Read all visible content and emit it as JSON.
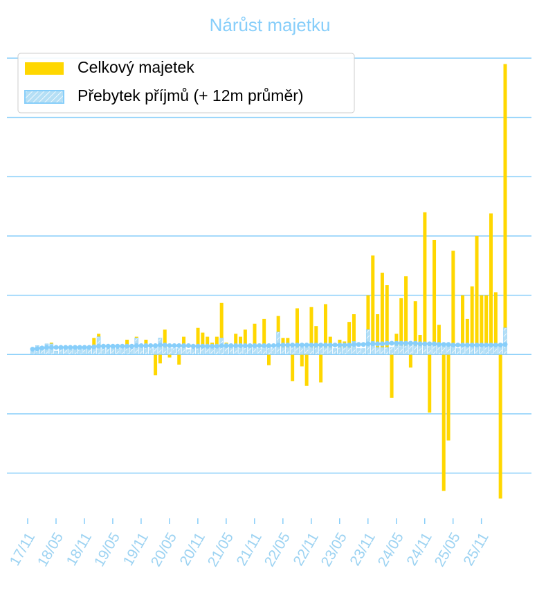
{
  "chart_data": {
    "type": "bar",
    "title": "Nárůst majetku",
    "categories": [
      "17/11",
      null,
      null,
      null,
      null,
      null,
      "18/05",
      null,
      null,
      null,
      null,
      null,
      "18/11",
      null,
      null,
      null,
      null,
      null,
      "19/05",
      null,
      null,
      null,
      null,
      null,
      "19/11",
      null,
      null,
      null,
      null,
      null,
      "20/05",
      null,
      null,
      null,
      null,
      null,
      "20/11",
      null,
      null,
      null,
      null,
      null,
      "21/05",
      null,
      null,
      null,
      null,
      null,
      "21/11",
      null,
      null,
      null,
      null,
      null,
      "22/05",
      null,
      null,
      null,
      null,
      null,
      "22/11",
      null,
      null,
      null,
      null,
      null,
      "23/05",
      null,
      null,
      null,
      null,
      null,
      "23/11",
      null,
      null,
      null,
      null,
      null,
      "24/05",
      null,
      null,
      null,
      null,
      null,
      "24/11",
      null,
      null,
      null,
      null,
      null,
      "25/05",
      null,
      null,
      null,
      null,
      null,
      "25/11",
      null,
      null,
      null,
      null
    ],
    "series": [
      {
        "name": "Celkový majetek",
        "color": "#ffd700",
        "values": [
          0.08,
          0.15,
          0.12,
          0.18,
          0.2,
          0.06,
          0.1,
          0.1,
          0.12,
          0.12,
          0.1,
          0.12,
          0.1,
          0.28,
          0.35,
          0.1,
          0.1,
          0.12,
          0.1,
          0.12,
          0.25,
          0.1,
          0.3,
          0.12,
          0.25,
          0.1,
          -0.35,
          -0.15,
          0.42,
          -0.05,
          0.1,
          -0.17,
          0.3,
          0.08,
          0.1,
          0.45,
          0.37,
          0.3,
          0.2,
          0.3,
          0.87,
          0.2,
          0.15,
          0.35,
          0.3,
          0.42,
          0.12,
          0.52,
          0.1,
          0.6,
          -0.18,
          0.1,
          0.65,
          0.28,
          0.28,
          -0.45,
          0.78,
          -0.2,
          -0.53,
          0.8,
          0.48,
          -0.47,
          0.85,
          0.3,
          0.1,
          0.25,
          0.22,
          0.55,
          0.68,
          0.1,
          0.1,
          1.0,
          1.67,
          0.68,
          1.38,
          1.17,
          -0.73,
          0.35,
          0.95,
          1.32,
          -0.22,
          0.9,
          0.33,
          2.4,
          -0.98,
          1.93,
          0.5,
          -2.3,
          -1.45,
          1.75,
          0.1,
          1.0,
          0.6,
          1.15,
          2.0,
          1.0,
          1.0,
          2.38,
          1.05,
          -2.43,
          4.9
        ]
      },
      {
        "name": "Přebytek příjmů (+ 12m průměr)",
        "color": "#87cefa",
        "values": [
          0.08,
          0.15,
          0.12,
          0.18,
          0.18,
          0.06,
          0.1,
          0.1,
          0.12,
          0.12,
          0.1,
          0.12,
          0.1,
          0.12,
          0.3,
          0.1,
          0.1,
          0.12,
          0.1,
          0.12,
          0.12,
          0.1,
          0.28,
          0.12,
          0.12,
          0.1,
          0.12,
          0.28,
          0.12,
          0.1,
          0.1,
          0.1,
          0.12,
          0.08,
          0.1,
          0.12,
          0.12,
          0.12,
          0.12,
          0.12,
          0.28,
          0.12,
          0.12,
          0.12,
          0.12,
          0.12,
          0.12,
          0.12,
          0.1,
          0.12,
          0.12,
          0.1,
          0.38,
          0.12,
          0.12,
          0.12,
          0.12,
          0.12,
          0.12,
          0.12,
          0.12,
          0.12,
          0.12,
          0.12,
          0.1,
          0.12,
          0.12,
          0.12,
          0.22,
          0.1,
          0.1,
          0.42,
          0.22,
          0.12,
          0.12,
          0.12,
          0.12,
          0.15,
          0.15,
          0.15,
          0.15,
          0.15,
          0.15,
          0.15,
          0.15,
          0.15,
          0.15,
          0.15,
          0.15,
          0.15,
          0.1,
          0.15,
          0.15,
          0.15,
          0.15,
          0.15,
          0.15,
          0.15,
          0.15,
          0.15,
          0.45
        ],
        "average": [
          0.09,
          0.1,
          0.11,
          0.12,
          0.12,
          0.12,
          0.12,
          0.12,
          0.12,
          0.12,
          0.12,
          0.12,
          0.12,
          0.13,
          0.14,
          0.14,
          0.14,
          0.14,
          0.14,
          0.14,
          0.14,
          0.14,
          0.15,
          0.15,
          0.15,
          0.15,
          0.15,
          0.16,
          0.16,
          0.15,
          0.15,
          0.15,
          0.15,
          0.15,
          0.14,
          0.14,
          0.14,
          0.14,
          0.14,
          0.14,
          0.15,
          0.15,
          0.15,
          0.15,
          0.15,
          0.15,
          0.15,
          0.15,
          0.15,
          0.15,
          0.15,
          0.15,
          0.16,
          0.16,
          0.16,
          0.16,
          0.16,
          0.16,
          0.16,
          0.16,
          0.16,
          0.16,
          0.16,
          0.16,
          0.16,
          0.16,
          0.16,
          0.16,
          0.17,
          0.17,
          0.17,
          0.18,
          0.18,
          0.18,
          0.18,
          0.19,
          0.19,
          0.19,
          0.19,
          0.19,
          0.19,
          0.19,
          0.18,
          0.18,
          0.18,
          0.18,
          0.17,
          0.17,
          0.17,
          0.16,
          0.16,
          0.16,
          0.16,
          0.16,
          0.16,
          0.16,
          0.16,
          0.16,
          0.16,
          0.16,
          0.17
        ]
      }
    ],
    "ylim": [
      -2.6,
      5.0
    ],
    "yticks": [
      -2,
      -1,
      0,
      1,
      2,
      3,
      4,
      5
    ],
    "grid": true,
    "legend": "upper left"
  }
}
